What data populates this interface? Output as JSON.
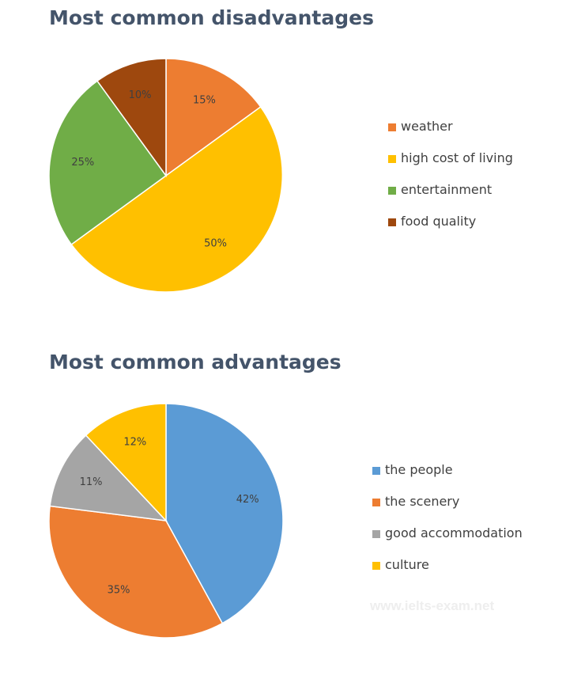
{
  "chart_data": [
    {
      "type": "pie",
      "title": "Most common disadvantages",
      "start_angle_deg": 0,
      "direction": "clockwise",
      "legend_position": "right",
      "slices": [
        {
          "label": "weather",
          "value": 15,
          "value_label": "15%",
          "color": "#ed7d31"
        },
        {
          "label": "high cost of living",
          "value": 50,
          "value_label": "50%",
          "color": "#ffc000"
        },
        {
          "label": "entertainment",
          "value": 25,
          "value_label": "25%",
          "color": "#70ad47"
        },
        {
          "label": "food quality",
          "value": 10,
          "value_label": "10%",
          "color": "#9e480e"
        }
      ]
    },
    {
      "type": "pie",
      "title": "Most common advantages",
      "start_angle_deg": 0,
      "direction": "clockwise",
      "legend_position": "right",
      "slices": [
        {
          "label": "the people",
          "value": 42,
          "value_label": "42%",
          "color": "#5b9bd5"
        },
        {
          "label": "the scenery",
          "value": 35,
          "value_label": "35%",
          "color": "#ed7d31"
        },
        {
          "label": "good accommodation",
          "value": 11,
          "value_label": "11%",
          "color": "#a5a5a5"
        },
        {
          "label": "culture",
          "value": 12,
          "value_label": "12%",
          "color": "#ffc000"
        }
      ]
    }
  ],
  "watermark": "www.ielts-exam.net"
}
